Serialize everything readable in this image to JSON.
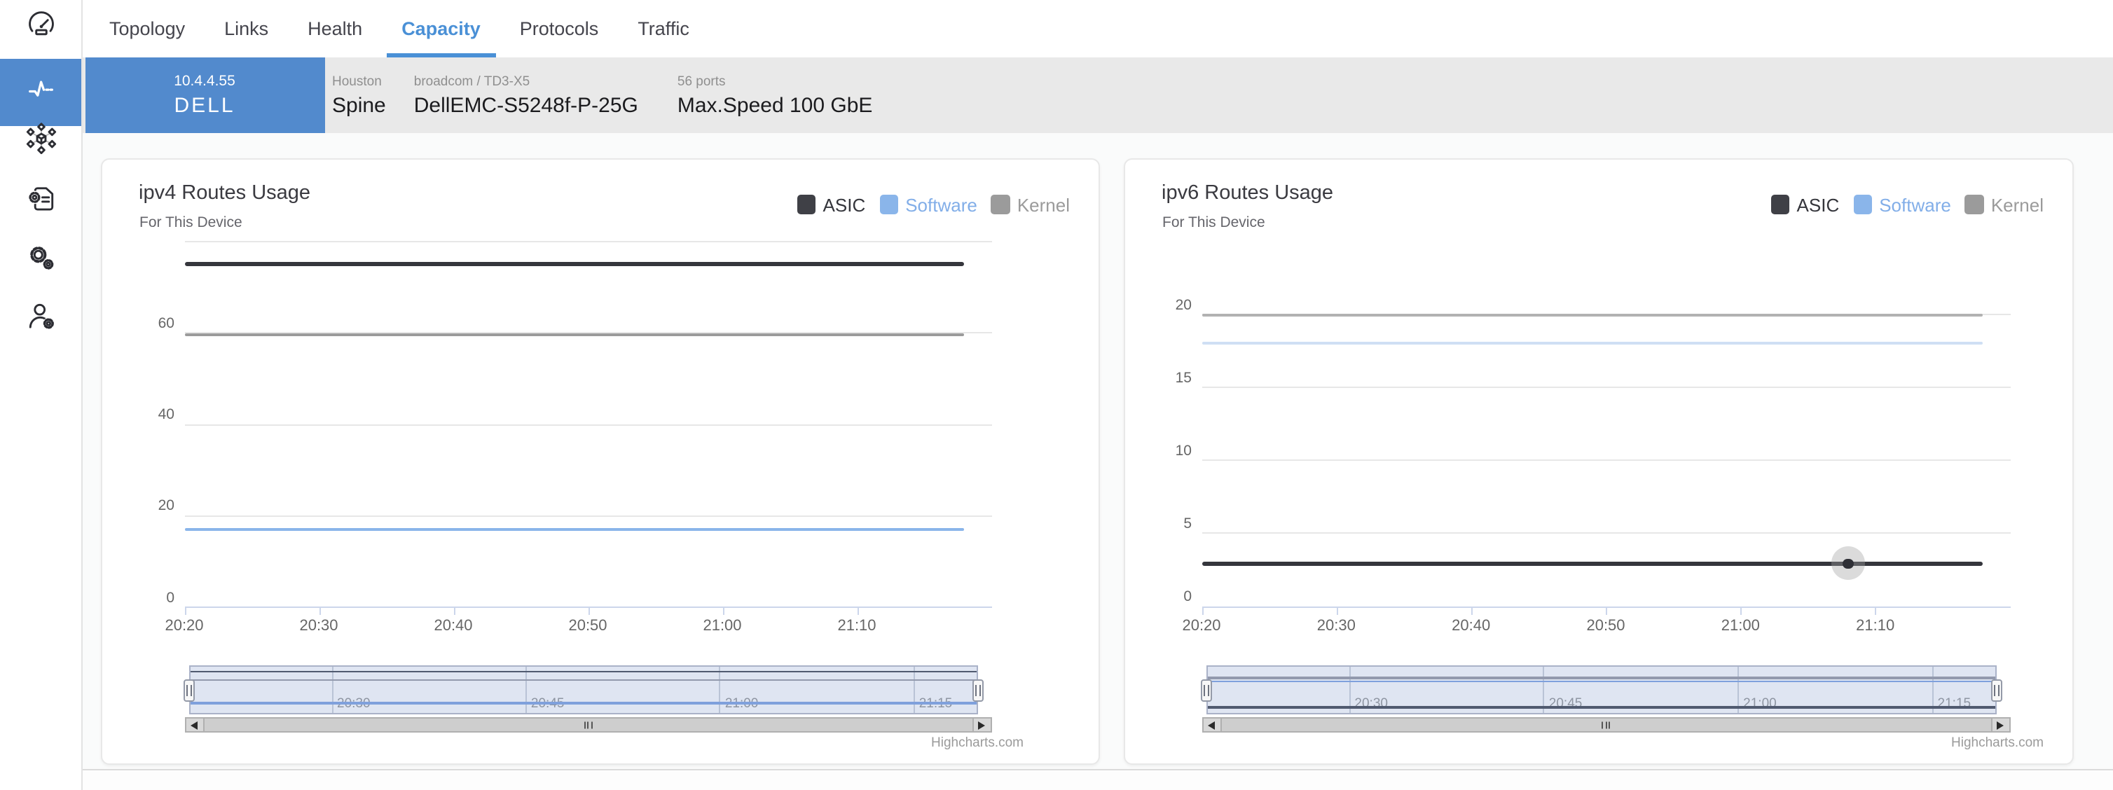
{
  "sidebar": {
    "items": [
      {
        "icon": "gauge-icon",
        "active": false
      },
      {
        "icon": "activity-icon",
        "active": true
      },
      {
        "icon": "network-nodes-icon",
        "active": false
      },
      {
        "icon": "document-gear-icon",
        "active": false
      },
      {
        "icon": "gears-icon",
        "active": false
      },
      {
        "icon": "user-gear-icon",
        "active": false
      }
    ]
  },
  "tabs": {
    "items": [
      {
        "label": "Topology",
        "active": false
      },
      {
        "label": "Links",
        "active": false
      },
      {
        "label": "Health",
        "active": false
      },
      {
        "label": "Capacity",
        "active": true
      },
      {
        "label": "Protocols",
        "active": false
      },
      {
        "label": "Traffic",
        "active": false
      }
    ]
  },
  "device_bar": {
    "ip": "10.4.4.55",
    "name": "DELL",
    "fields": [
      {
        "label": "Houston",
        "value": "Spine"
      },
      {
        "label": "broadcom / TD3-X5",
        "value": "DellEMC-S5248f-P-25G"
      },
      {
        "label": "56 ports",
        "value": "Max.Speed 100 GbE"
      }
    ]
  },
  "colors": {
    "accent": "#528acd",
    "tab_active": "#4a90d6",
    "asic": "#35363c",
    "software": "#8ab5ea",
    "kernel": "#9b9b9b"
  },
  "chart_data": [
    {
      "type": "line",
      "title": "ipv4 Routes Usage",
      "subtitle": "For This Device",
      "legend": [
        {
          "name": "ASIC",
          "color": "#3f4046",
          "text_color": "#34353b"
        },
        {
          "name": "Software",
          "color": "#8ab5ea",
          "text_color": "#82aee8"
        },
        {
          "name": "Kernel",
          "color": "#9b9b9b",
          "text_color": "#9b9b9b"
        }
      ],
      "ylim": [
        0,
        80
      ],
      "y_gridlines": [
        20,
        40,
        60,
        80
      ],
      "y_labels": [
        0,
        20,
        40,
        60
      ],
      "x_start": "20:20",
      "x_end": "21:20",
      "x_ticks": [
        "20:20",
        "20:30",
        "20:40",
        "20:50",
        "21:00",
        "21:10"
      ],
      "series": [
        {
          "name": "Kernel",
          "value": 59.5,
          "color": "#9b9b9b",
          "nav_color": "#9299ad",
          "width": 2,
          "data_end": "21:18"
        },
        {
          "name": "Software",
          "value": 17,
          "color": "#8ab5ea",
          "nav_color": "#7fa0dc",
          "width": 2,
          "data_end": "21:18"
        },
        {
          "name": "ASIC",
          "value": 75,
          "color": "#35363c",
          "nav_color": "#505a70",
          "width": 2.5,
          "data_end": "21:18"
        }
      ],
      "navigator": {
        "labels": [
          "20:30",
          "20:45",
          "21:00",
          "21:15"
        ],
        "range_start": "20:19",
        "range_end": "21:20"
      },
      "credit": "Highcharts.com"
    },
    {
      "type": "line",
      "title": "ipv6 Routes Usage",
      "subtitle": "For This Device",
      "legend": [
        {
          "name": "ASIC",
          "color": "#3f4046",
          "text_color": "#34353b"
        },
        {
          "name": "Software",
          "color": "#8ab5ea",
          "text_color": "#82aee8"
        },
        {
          "name": "Kernel",
          "color": "#9b9b9b",
          "text_color": "#9b9b9b"
        }
      ],
      "ylim": [
        0,
        25
      ],
      "y_gridlines": [
        5,
        10,
        15,
        20
      ],
      "y_labels": [
        0,
        5,
        10,
        15,
        20
      ],
      "x_start": "20:20",
      "x_end": "21:20",
      "x_ticks": [
        "20:20",
        "20:30",
        "20:40",
        "20:50",
        "21:00",
        "21:10"
      ],
      "series": [
        {
          "name": "Kernel",
          "value": 19.9,
          "color": "#b2b2b2",
          "nav_color": "#9299ad",
          "width": 1.5,
          "data_end": "21:18"
        },
        {
          "name": "Software",
          "value": 18,
          "color": "#cfdff4",
          "nav_color": "#7fa0dc",
          "width": 2,
          "data_end": "21:18"
        },
        {
          "name": "ASIC",
          "value": 2.9,
          "color": "#35363c",
          "nav_color": "#505a70",
          "width": 2.5,
          "data_end": "21:18",
          "marker": {
            "time": "21:08"
          }
        }
      ],
      "navigator": {
        "labels": [
          "20:30",
          "20:45",
          "21:00",
          "21:15"
        ],
        "range_start": "20:19",
        "range_end": "21:20"
      },
      "credit": "Highcharts.com"
    }
  ]
}
